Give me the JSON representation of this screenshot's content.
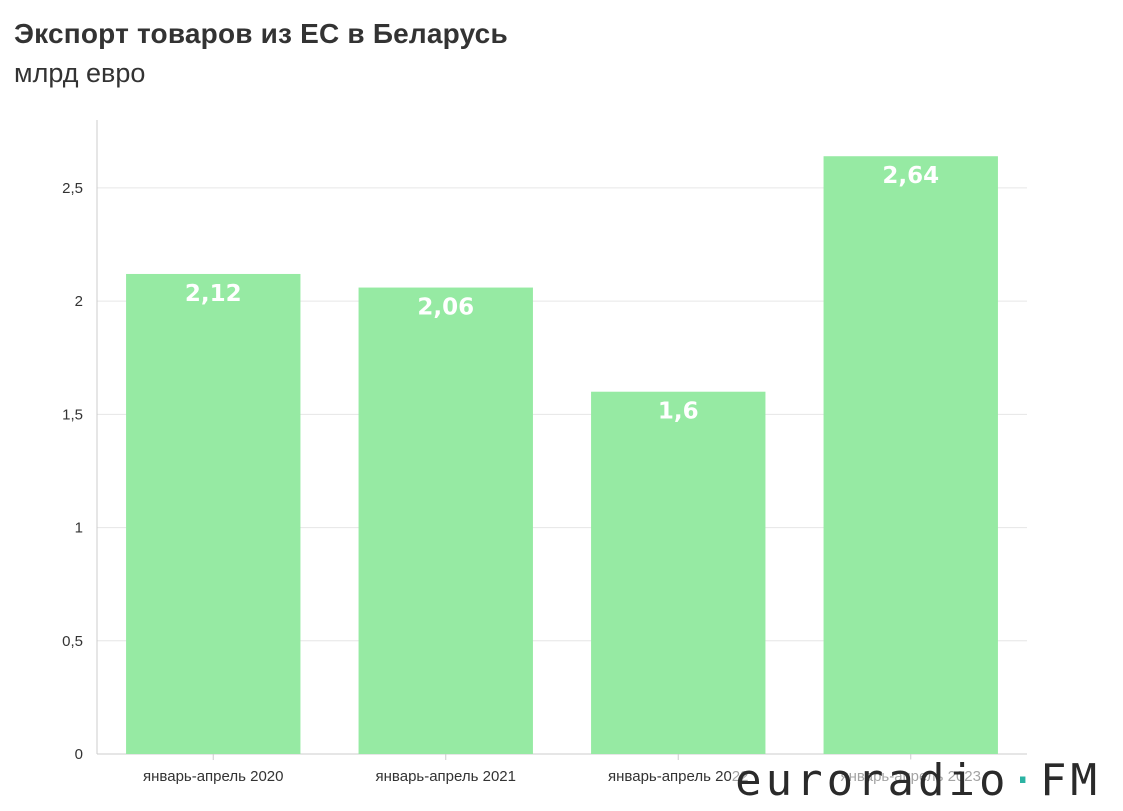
{
  "header": {
    "title": "Экспорт товаров из ЕС в Беларусь",
    "subtitle": "млрд евро"
  },
  "watermark": {
    "brand_main": "euroradio",
    "brand_dot": "·",
    "brand_tld": "FM",
    "accent_color": "#2bb3a3"
  },
  "colors": {
    "bar": "#96eaa3",
    "grid": "#e6e6e6",
    "axis": "#cccccc",
    "text": "#333333"
  },
  "chart_data": {
    "type": "bar",
    "title": "Экспорт товаров из ЕС в Беларусь",
    "subtitle": "млрд евро",
    "categories": [
      "январь-апрель 2020",
      "январь-апрель 2021",
      "январь-апрель 2022",
      "январь-апрель 2023"
    ],
    "values": [
      2.12,
      2.06,
      1.6,
      2.64
    ],
    "value_labels": [
      "2,12",
      "2,06",
      "1,6",
      "2,64"
    ],
    "yticks": [
      0,
      0.5,
      1,
      1.5,
      2,
      2.5
    ],
    "ytick_labels": [
      "0",
      "0,5",
      "1",
      "1,5",
      "2",
      "2,5"
    ],
    "ylim": [
      0,
      2.8
    ],
    "grid": true,
    "xlabel": "",
    "ylabel": ""
  }
}
